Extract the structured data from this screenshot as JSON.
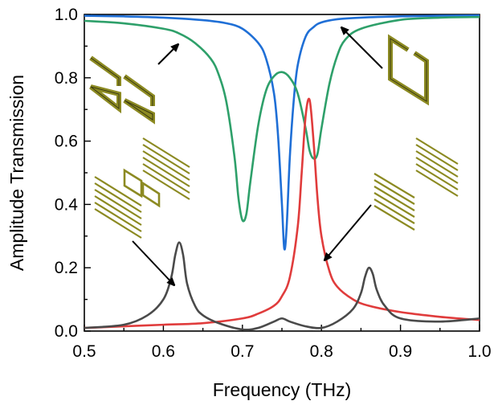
{
  "chart_data": {
    "type": "line",
    "title": "",
    "xlabel": "Frequency (THz)",
    "ylabel": "Amplitude Transmission",
    "xlim": [
      0.5,
      1.0
    ],
    "ylim": [
      0.0,
      1.0
    ],
    "xticks": [
      0.5,
      0.6,
      0.7,
      0.8,
      0.9,
      1.0
    ],
    "yticks": [
      0.0,
      0.2,
      0.4,
      0.6,
      0.8,
      1.0
    ],
    "xtick_labels": [
      "0.5",
      "0.6",
      "0.7",
      "0.8",
      "0.9",
      "1.0"
    ],
    "ytick_labels": [
      "0.0",
      "0.2",
      "0.4",
      "0.6",
      "0.8",
      "1.0"
    ],
    "grid": false,
    "series": [
      {
        "name": "blue",
        "color": "#1f6fd6",
        "x": [
          0.5,
          0.55,
          0.6,
          0.65,
          0.68,
          0.7,
          0.72,
          0.73,
          0.74,
          0.745,
          0.75,
          0.753,
          0.756,
          0.76,
          0.765,
          0.77,
          0.78,
          0.79,
          0.8,
          0.82,
          0.85,
          0.9,
          0.95,
          1.0
        ],
        "y": [
          0.996,
          0.994,
          0.99,
          0.982,
          0.972,
          0.955,
          0.91,
          0.86,
          0.75,
          0.62,
          0.4,
          0.26,
          0.33,
          0.55,
          0.73,
          0.84,
          0.93,
          0.96,
          0.975,
          0.985,
          0.99,
          0.994,
          0.996,
          0.997
        ]
      },
      {
        "name": "green",
        "color": "#2ea06a",
        "x": [
          0.5,
          0.55,
          0.6,
          0.62,
          0.64,
          0.66,
          0.67,
          0.68,
          0.69,
          0.695,
          0.7,
          0.705,
          0.71,
          0.72,
          0.73,
          0.74,
          0.75,
          0.76,
          0.77,
          0.78,
          0.785,
          0.79,
          0.795,
          0.8,
          0.81,
          0.82,
          0.83,
          0.85,
          0.9,
          0.95,
          1.0
        ],
        "y": [
          0.98,
          0.972,
          0.955,
          0.94,
          0.91,
          0.86,
          0.81,
          0.72,
          0.55,
          0.42,
          0.35,
          0.37,
          0.47,
          0.65,
          0.76,
          0.805,
          0.818,
          0.8,
          0.75,
          0.64,
          0.57,
          0.545,
          0.56,
          0.64,
          0.78,
          0.87,
          0.92,
          0.955,
          0.983,
          0.99,
          0.992
        ]
      },
      {
        "name": "red",
        "color": "#e03c3c",
        "x": [
          0.5,
          0.55,
          0.6,
          0.65,
          0.7,
          0.72,
          0.74,
          0.75,
          0.76,
          0.77,
          0.775,
          0.78,
          0.785,
          0.79,
          0.795,
          0.8,
          0.81,
          0.82,
          0.84,
          0.86,
          0.9,
          0.95,
          1.0
        ],
        "y": [
          0.01,
          0.015,
          0.02,
          0.025,
          0.04,
          0.055,
          0.08,
          0.11,
          0.17,
          0.33,
          0.5,
          0.68,
          0.73,
          0.6,
          0.42,
          0.3,
          0.19,
          0.14,
          0.1,
          0.08,
          0.06,
          0.045,
          0.035
        ]
      },
      {
        "name": "black",
        "color": "#4a4a4a",
        "x": [
          0.5,
          0.55,
          0.58,
          0.6,
          0.61,
          0.615,
          0.62,
          0.625,
          0.63,
          0.64,
          0.65,
          0.67,
          0.7,
          0.72,
          0.74,
          0.75,
          0.76,
          0.78,
          0.8,
          0.82,
          0.84,
          0.85,
          0.855,
          0.86,
          0.865,
          0.87,
          0.88,
          0.9,
          0.95,
          1.0
        ],
        "y": [
          0.01,
          0.02,
          0.05,
          0.1,
          0.17,
          0.24,
          0.28,
          0.24,
          0.15,
          0.08,
          0.05,
          0.025,
          0.005,
          0.01,
          0.03,
          0.04,
          0.03,
          0.015,
          0.01,
          0.03,
          0.07,
          0.12,
          0.17,
          0.2,
          0.18,
          0.13,
          0.08,
          0.04,
          0.03,
          0.04
        ]
      }
    ]
  }
}
